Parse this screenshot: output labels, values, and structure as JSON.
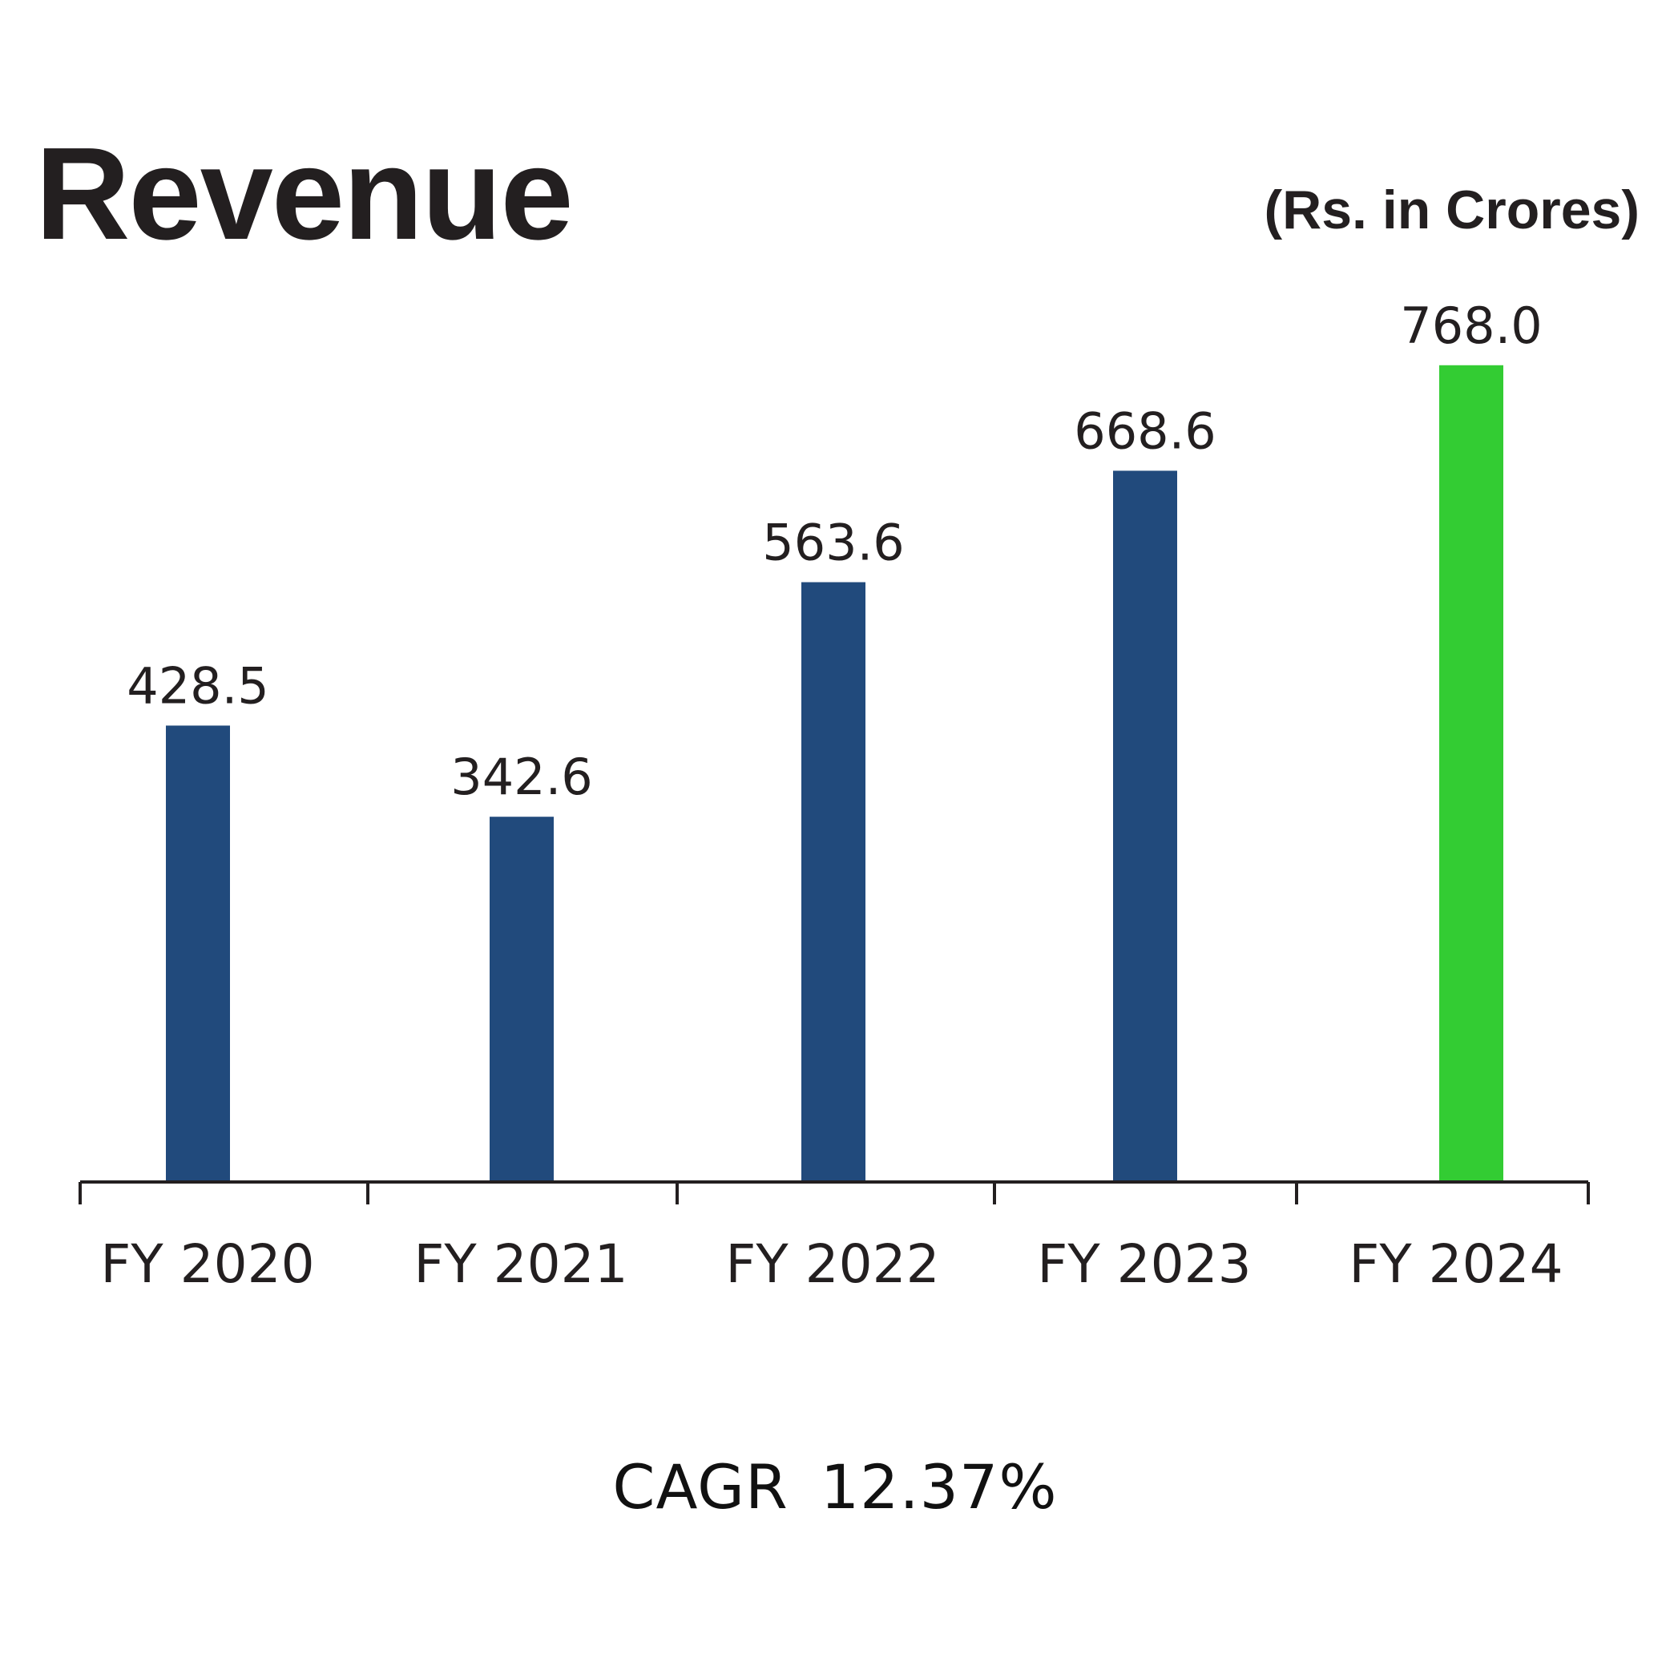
{
  "header": {
    "title": "Revenue",
    "unit": "(Rs. in Crores)"
  },
  "chart_data": {
    "type": "bar",
    "categories": [
      "FY 2020",
      "FY 2021",
      "FY 2022",
      "FY 2023",
      "FY 2024"
    ],
    "values": [
      428.5,
      342.6,
      563.6,
      668.6,
      768.0
    ],
    "value_labels": [
      "428.5",
      "342.6",
      "563.6",
      "668.6",
      "768.0"
    ],
    "title": "Revenue",
    "unit": "(Rs. in Crores)",
    "xlabel": "",
    "ylabel": "",
    "ylim": [
      0,
      1000
    ],
    "grid": false,
    "legend": "none",
    "colors": {
      "default": "#214a7c",
      "highlight": "#33cc33",
      "highlight_category": "FY 2024"
    }
  },
  "footer": {
    "cagr_label": "CAGR",
    "cagr_value": "12.37%"
  }
}
